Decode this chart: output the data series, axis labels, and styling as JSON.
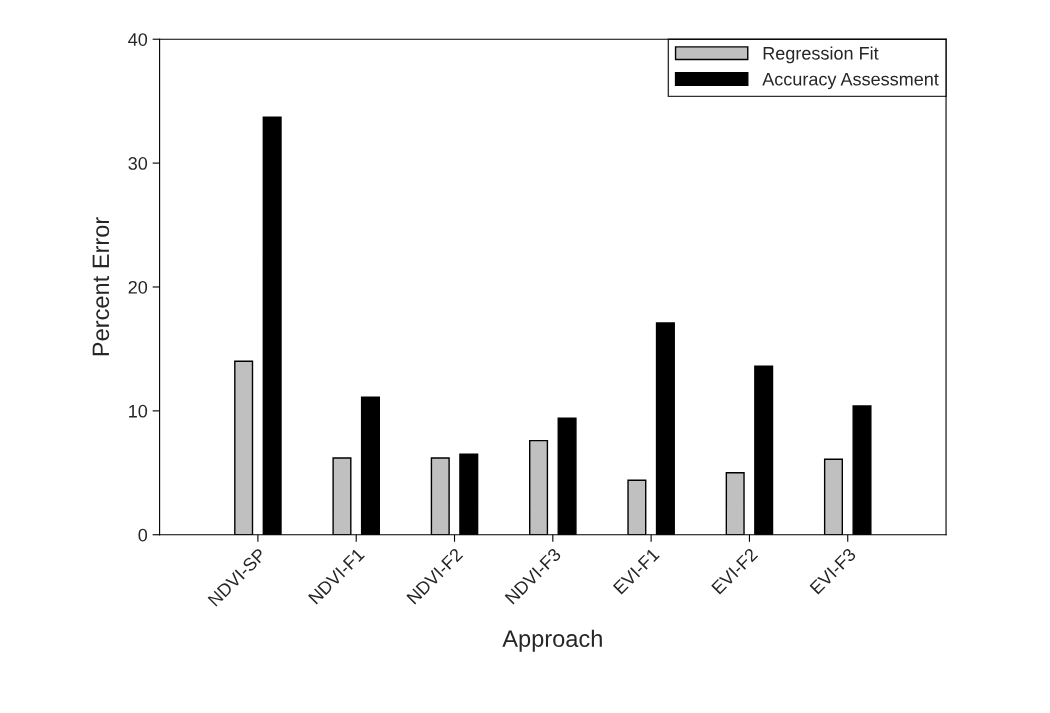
{
  "chart_data": {
    "type": "bar",
    "xlabel": "Approach",
    "ylabel": "Percent Error",
    "categories": [
      "NDVI-SP",
      "NDVI-F1",
      "NDVI-F2",
      "NDVI-F3",
      "EVI-F1",
      "EVI-F2",
      "EVI-F3"
    ],
    "series": [
      {
        "name": "Regression Fit",
        "color": "#c0c0c0",
        "values": [
          14.0,
          6.2,
          6.2,
          7.6,
          4.4,
          5.0,
          6.1
        ]
      },
      {
        "name": "Accuracy Assessment",
        "color": "#000000",
        "values": [
          33.7,
          11.1,
          6.5,
          9.4,
          17.1,
          13.6,
          10.4
        ]
      }
    ],
    "ylim": [
      0,
      40
    ],
    "yticks": [
      0,
      10,
      20,
      30,
      40
    ],
    "grid": false,
    "legend": "top right"
  }
}
